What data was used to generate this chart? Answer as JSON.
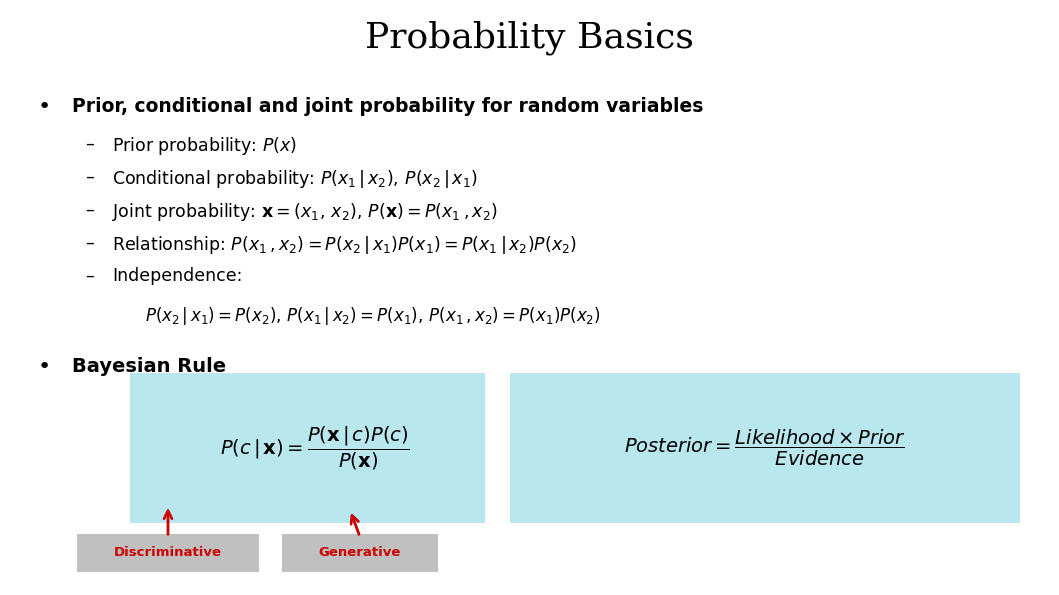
{
  "title": "Probability Basics",
  "bg_color": "#ffffff",
  "title_fontsize": 26,
  "bullet1": "Prior, conditional and joint probability for random variables",
  "sub_items": [
    "Prior probability: $P(x)$",
    "Conditional probability: $P(x_1\\,|\\,x_2),\\,P(x_2\\,|\\,x_1)$",
    "Joint probability: $\\mathbf{x}=(x_1,\\,x_2),\\,P(\\mathbf{x})=P(x_1\\,,x_2)$",
    "Relationship: $P(x_1\\,,x_2)=P(x_2\\,|\\,x_1)P(x_1)=P(x_1\\,|\\,x_2)P(x_2)$",
    "Independence:"
  ],
  "independence_eq": "$P(x_2\\,|\\,x_1)=P(x_2),\\,P(x_1\\,|\\,x_2)=P(x_1),\\,P(x_1\\,,x_2)=P(x_1)P(x_2)$",
  "bullet2": "Bayesian Rule",
  "bayes_eq": "$P(c\\,|\\,\\mathbf{x})=\\dfrac{P(\\mathbf{x}\\,|\\,c)P(c)}{P(\\mathbf{x})}$",
  "posterior_eq": "$\\mathit{Posterior}=\\dfrac{\\mathit{Likelihood}\\times\\mathit{Prior}}{\\mathit{Evidence}}$",
  "box_color": "#b8e8ee",
  "label_bg": "#c0c0c0",
  "arrow_color": "#cc0000",
  "discriminative_label": "Discriminative",
  "generative_label": "Generative",
  "label_color": "#cc0000",
  "fig_width": 10.59,
  "fig_height": 5.95,
  "dpi": 100
}
